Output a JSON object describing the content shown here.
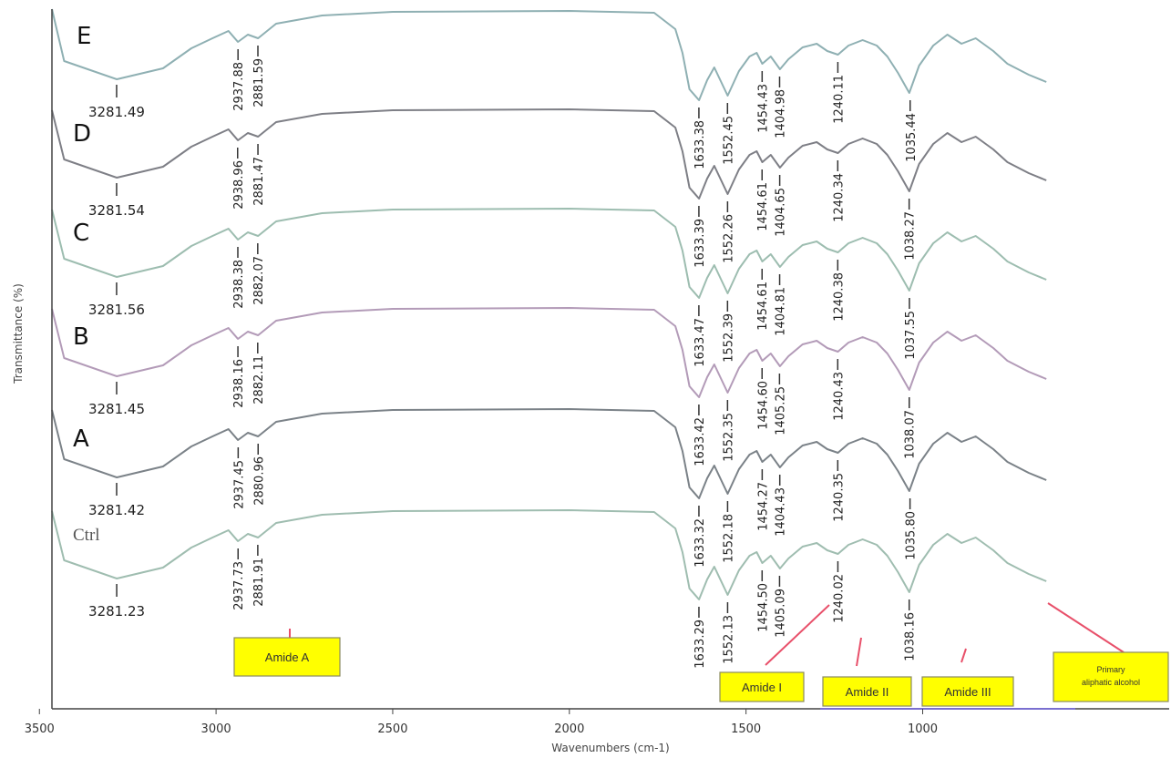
{
  "chart_data": {
    "type": "line",
    "title": "",
    "xlabel": "Wavenumbers (cm-1)",
    "ylabel": "Transmittance (%)",
    "xlim": [
      4000,
      650
    ],
    "x_reversed": true,
    "x_ticks": [
      "3500",
      "3000",
      "2500",
      "2000",
      "1500",
      "1000"
    ],
    "grid": false,
    "legend": "labels at left of each trace",
    "colors": {
      "E": "#8fb0b3",
      "D": "#7e7f86",
      "C": "#9dbdb0",
      "B": "#b39bb8",
      "A": "#7b8288",
      "Ctrl": "#9fbdb0",
      "annotation_box": "#ffff00",
      "annotation_line": "#e8506a"
    },
    "series": [
      {
        "name": "E",
        "peaks": [
          "3281.49",
          "2937.88",
          "2881.59",
          "1633.38",
          "1552.45",
          "1454.43",
          "1404.98",
          "1240.11",
          "1035.44"
        ]
      },
      {
        "name": "D",
        "peaks": [
          "3281.54",
          "2938.96",
          "2881.47",
          "1633.39",
          "1552.26",
          "1454.61",
          "1404.65",
          "1240.34",
          "1038.27"
        ]
      },
      {
        "name": "C",
        "peaks": [
          "3281.56",
          "2938.38",
          "2882.07",
          "1633.47",
          "1552.39",
          "1454.61",
          "1404.81",
          "1240.38",
          "1037.55"
        ]
      },
      {
        "name": "B",
        "peaks": [
          "3281.45",
          "2938.16",
          "2882.11",
          "1633.42",
          "1552.35",
          "1454.60",
          "1405.25",
          "1240.43",
          "1038.07"
        ]
      },
      {
        "name": "A",
        "peaks": [
          "3281.42",
          "2937.45",
          "2880.96",
          "1633.32",
          "1552.18",
          "1454.27",
          "1404.43",
          "1240.35",
          "1035.80"
        ]
      },
      {
        "name": "Ctrl",
        "peaks": [
          "3281.23",
          "2937.73",
          "2881.91",
          "1633.29",
          "1552.13",
          "1454.50",
          "1405.09",
          "1240.02",
          "1038.16"
        ]
      }
    ],
    "annotations": [
      {
        "label": "Amide A",
        "peak": 3281
      },
      {
        "label": "Amide I",
        "peak": 1633
      },
      {
        "label": "Amide II",
        "peak": 1552
      },
      {
        "label": "Amide III",
        "peak": 1240
      },
      {
        "label": "Primary aliphatic alcohol",
        "peak": 1038
      }
    ]
  }
}
